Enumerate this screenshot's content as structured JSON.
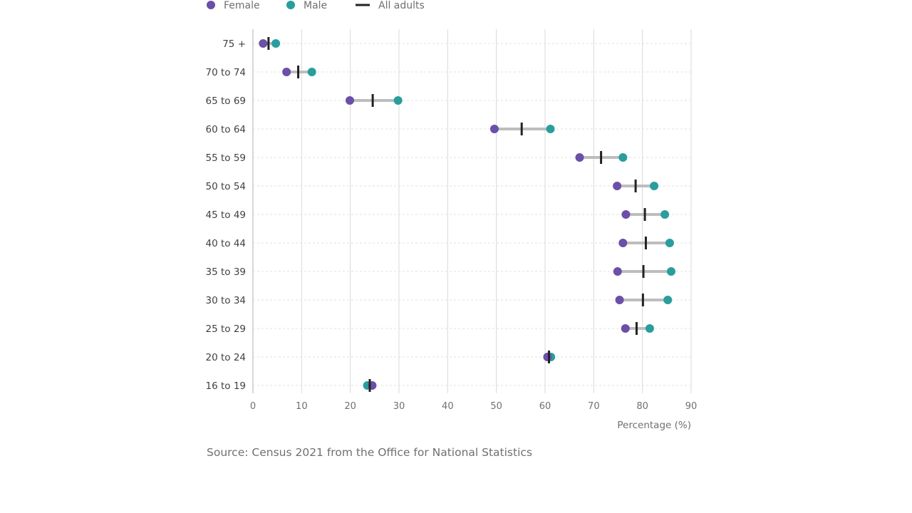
{
  "chart_data": {
    "type": "dot-range",
    "title": "",
    "xlabel": "Percentage (%)",
    "ylabel": "",
    "xlim": [
      0,
      90
    ],
    "x_ticks": [
      0,
      10,
      20,
      30,
      40,
      50,
      60,
      70,
      80,
      90
    ],
    "grid": true,
    "legend_position": "top-left",
    "categories": [
      "75 +",
      "70 to 74",
      "65 to 69",
      "60 to 64",
      "55 to 59",
      "50 to 54",
      "45 to 49",
      "40 to 44",
      "35 to 39",
      "30 to 34",
      "25 to 29",
      "20 to 24",
      "16 to 19"
    ],
    "series": [
      {
        "name": "Female",
        "marker": "dot",
        "color": "#6b4fa8",
        "values": [
          2.1,
          6.9,
          19.9,
          49.6,
          67.1,
          74.8,
          76.6,
          76.0,
          74.9,
          75.3,
          76.5,
          60.5,
          24.5
        ]
      },
      {
        "name": "Male",
        "marker": "dot",
        "color": "#2a9d9d",
        "values": [
          4.7,
          12.1,
          29.8,
          61.1,
          76.0,
          82.4,
          84.6,
          85.6,
          85.9,
          85.2,
          81.5,
          61.2,
          23.5
        ]
      },
      {
        "name": "All adults",
        "marker": "bar",
        "color": "#222222",
        "values": [
          3.2,
          9.3,
          24.6,
          55.2,
          71.5,
          78.6,
          80.5,
          80.7,
          80.2,
          80.1,
          78.8,
          60.8,
          24.0
        ]
      }
    ]
  },
  "source_text": "Source: Census 2021 from the Office for National Statistics",
  "colors": {
    "range_line": "#bdbdbd",
    "grid": "#d9d9d9",
    "dotted_grid": "#e2e2e2"
  }
}
